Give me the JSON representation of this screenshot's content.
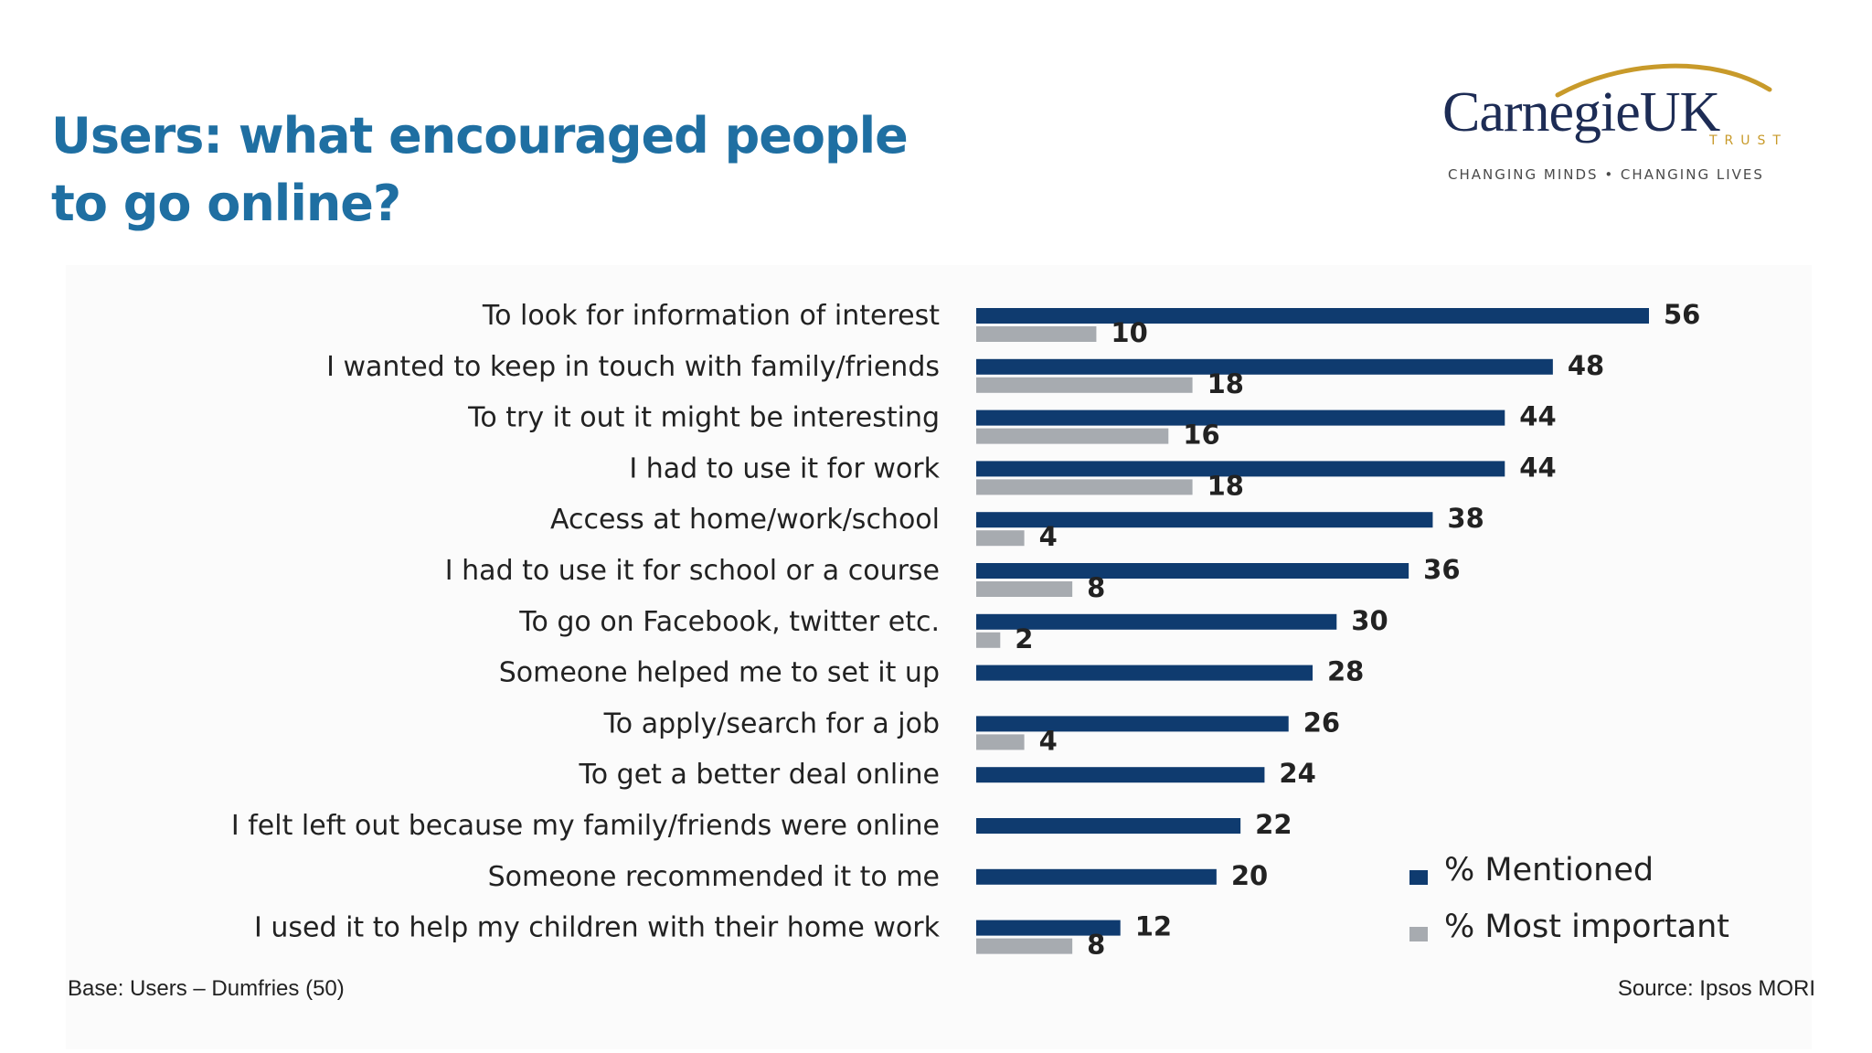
{
  "slide": {
    "title": "Users: what encouraged people to go online?"
  },
  "logo": {
    "name": "CarnegieUK",
    "trust": "TRUST",
    "tagline": "CHANGING MINDS • CHANGING LIVES",
    "colors": {
      "name": "#1d2c55",
      "swoosh": "#c89a2a"
    }
  },
  "footer": {
    "base": "Base: Users – Dumfries (50)",
    "source": "Source: Ipsos MORI"
  },
  "colors": {
    "mentioned": "#0f3b6f",
    "most_important": "#a7abb0",
    "title": "#1f6fa2"
  },
  "chart_data": {
    "type": "bar",
    "orientation": "horizontal",
    "categories": [
      "To look for information of interest",
      "I wanted to keep in touch with family/friends",
      "To try it out it might be interesting",
      "I had to use it for work",
      "Access at home/work/school",
      "I had to use it for school or a course",
      "To go on Facebook, twitter etc.",
      "Someone helped me to set it up",
      "To apply/search for a job",
      "To get a better deal online",
      "I felt left out because my family/friends were online",
      "Someone recommended it to me",
      "I used it to help my children with their home work"
    ],
    "series": [
      {
        "name": "% Mentioned",
        "values": [
          56,
          48,
          44,
          44,
          38,
          36,
          30,
          28,
          26,
          24,
          22,
          20,
          12
        ]
      },
      {
        "name": "% Most important",
        "values": [
          10,
          18,
          16,
          18,
          4,
          8,
          2,
          null,
          4,
          null,
          null,
          null,
          8
        ]
      }
    ],
    "xlim": [
      0,
      60
    ],
    "legend_position": "bottom-right",
    "grid": false,
    "data_labels": true
  }
}
